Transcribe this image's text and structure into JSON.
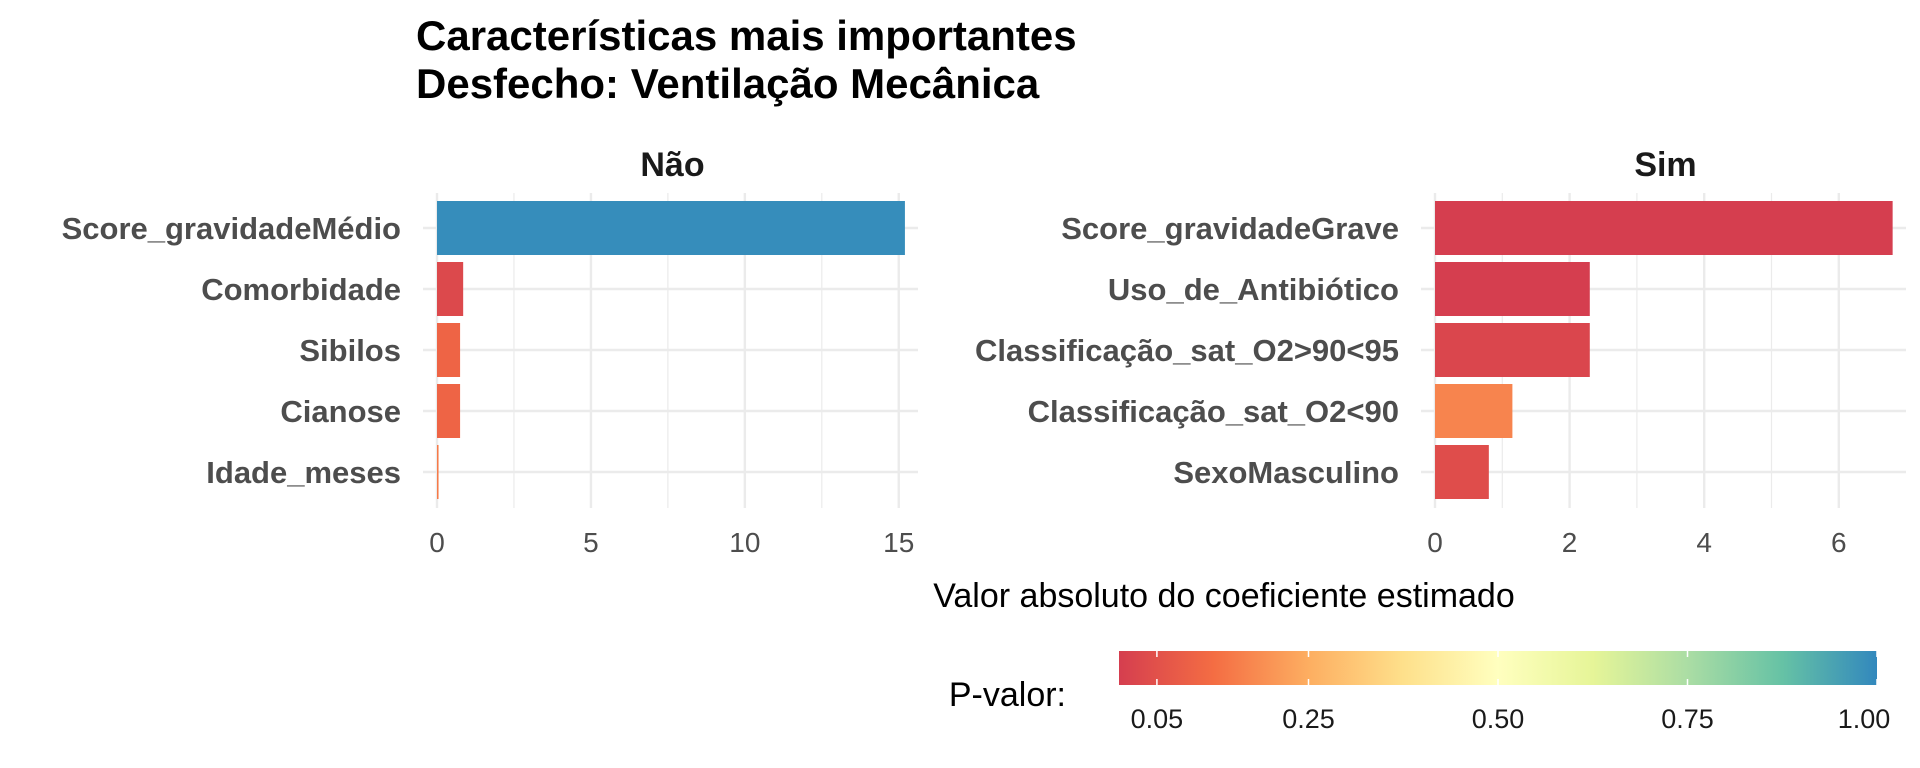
{
  "chart_data": {
    "type": "bar",
    "orientation": "horizontal",
    "title_lines": [
      "Características mais importantes",
      "Desfecho: Ventilação Mecânica"
    ],
    "xlabel": "Valor absoluto do coeficiente estimado",
    "legend": {
      "title": "P-valor:",
      "position": "bottom",
      "scale": "continuous",
      "palette": [
        "#d53e4f",
        "#f46d43",
        "#fdae61",
        "#fee08b",
        "#ffffbf",
        "#e6f598",
        "#abdda4",
        "#66c2a5",
        "#3288bd"
      ],
      "range": [
        0.0,
        1.0
      ],
      "ticks": [
        {
          "value": 0.05,
          "label": "0.05"
        },
        {
          "value": 0.25,
          "label": "0.25"
        },
        {
          "value": 0.5,
          "label": "0.50"
        },
        {
          "value": 0.75,
          "label": "0.75"
        },
        {
          "value": 1.0,
          "label": "1.00"
        }
      ]
    },
    "grid": true,
    "panels": [
      {
        "name": "Não",
        "xlim": [
          0,
          15.3
        ],
        "xticks": [
          0,
          5,
          10,
          15
        ],
        "categories": [
          "Score_gravidadeMédio",
          "Comorbidade",
          "Sibilos",
          "Cianose",
          "Idade_meses"
        ],
        "values": [
          15.2,
          0.85,
          0.75,
          0.75,
          0.05
        ],
        "p_values": [
          0.99,
          0.03,
          0.1,
          0.1,
          0.15
        ]
      },
      {
        "name": "Sim",
        "xlim": [
          0,
          6.85
        ],
        "xticks": [
          0,
          2,
          4,
          6
        ],
        "categories": [
          "Score_gravidadeGrave",
          "Uso_de_Antibiótico",
          "Classificação_sat_O2>90<95",
          "Classificação_sat_O2<90",
          "SexoMasculino"
        ],
        "values": [
          6.8,
          2.3,
          2.3,
          1.15,
          0.8
        ],
        "p_values": [
          0.001,
          0.001,
          0.02,
          0.17,
          0.04
        ]
      }
    ]
  }
}
